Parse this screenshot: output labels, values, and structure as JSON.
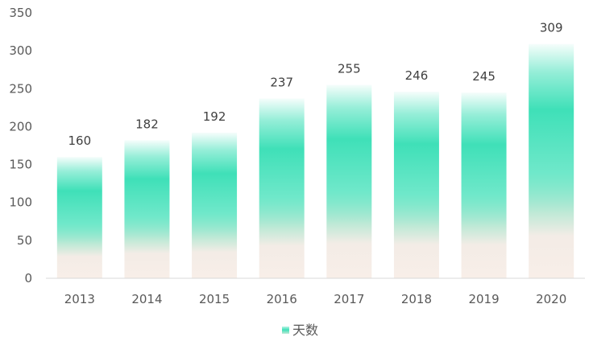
{
  "chart_data": {
    "type": "bar",
    "categories": [
      "2013",
      "2014",
      "2015",
      "2016",
      "2017",
      "2018",
      "2019",
      "2020"
    ],
    "series": [
      {
        "name": "天数",
        "values": [
          160,
          182,
          192,
          237,
          255,
          246,
          245,
          309
        ]
      }
    ],
    "title": "",
    "xlabel": "",
    "ylabel": "",
    "ylim": [
      0,
      350
    ],
    "y_ticks": [
      0,
      50,
      100,
      150,
      200,
      250,
      300,
      350
    ],
    "grid": false,
    "legend_position": "bottom",
    "colors": {
      "bar_main": "#3fe0b8",
      "bar_fade": "#f8ede6",
      "axis": "#d9d9d9",
      "text": "#595959"
    }
  }
}
